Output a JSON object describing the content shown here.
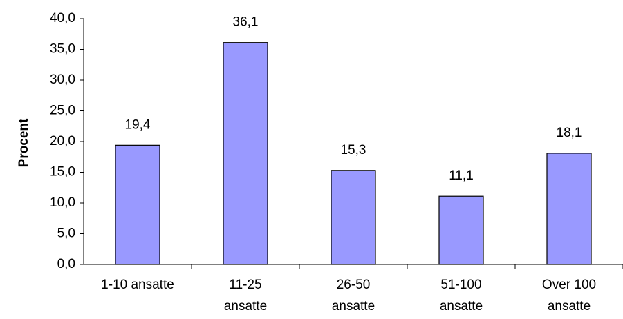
{
  "chart_data": {
    "type": "bar",
    "title": "",
    "xlabel": "",
    "ylabel": "Procent",
    "ylim": [
      0,
      40
    ],
    "yticks": [
      "0,0",
      "5,0",
      "10,0",
      "15,0",
      "20,0",
      "25,0",
      "30,0",
      "35,0",
      "40,0"
    ],
    "categories": [
      [
        "1-10 ansatte"
      ],
      [
        "11-25",
        "ansatte"
      ],
      [
        "26-50",
        "ansatte"
      ],
      [
        "51-100",
        "ansatte"
      ],
      [
        "Over 100",
        "ansatte"
      ]
    ],
    "values": [
      19.4,
      36.1,
      15.3,
      11.1,
      18.1
    ],
    "value_labels": [
      "19,4",
      "36,1",
      "15,3",
      "11,1",
      "18,1"
    ],
    "grid": false,
    "legend": "none",
    "colors": {
      "bar_fill": "#9999ff",
      "bar_stroke": "#000000",
      "axis": "#000000"
    }
  }
}
